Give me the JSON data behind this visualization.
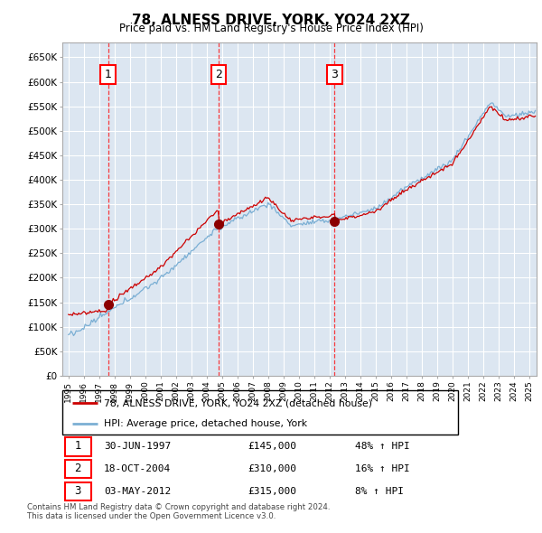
{
  "title": "78, ALNESS DRIVE, YORK, YO24 2XZ",
  "subtitle": "Price paid vs. HM Land Registry's House Price Index (HPI)",
  "plot_bg_color": "#dce6f1",
  "sales": [
    {
      "date_num": 1997.58,
      "price": 145000,
      "label": "1",
      "date_str": "30-JUN-1997",
      "pct": "48% ↑ HPI"
    },
    {
      "date_num": 2004.79,
      "price": 310000,
      "label": "2",
      "date_str": "18-OCT-2004",
      "pct": "16% ↑ HPI"
    },
    {
      "date_num": 2012.34,
      "price": 315000,
      "label": "3",
      "date_str": "03-MAY-2012",
      "pct": "8% ↑ HPI"
    }
  ],
  "hpi_line_color": "#7bafd4",
  "sale_line_color": "#cc0000",
  "sale_dot_color": "#8b0000",
  "legend_label_sale": "78, ALNESS DRIVE, YORK, YO24 2XZ (detached house)",
  "legend_label_hpi": "HPI: Average price, detached house, York",
  "footnote_line1": "Contains HM Land Registry data © Crown copyright and database right 2024.",
  "footnote_line2": "This data is licensed under the Open Government Licence v3.0.",
  "yticks": [
    0,
    50000,
    100000,
    150000,
    200000,
    250000,
    300000,
    350000,
    400000,
    450000,
    500000,
    550000,
    600000,
    650000
  ],
  "ylim_max": 680000,
  "xmin": 1994.6,
  "xmax": 2025.5
}
